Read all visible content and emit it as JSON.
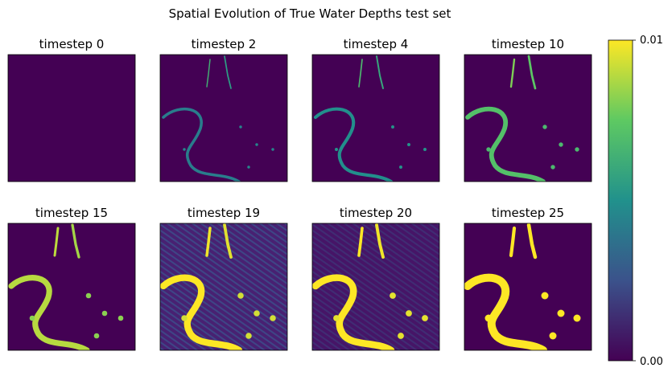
{
  "figure": {
    "title": "Spatial Evolution of True Water Depths test set"
  },
  "colorbar": {
    "max_label": "0.01",
    "min_label": "0.00",
    "colormap": "viridis",
    "stops": [
      "#440154",
      "#3b528b",
      "#21918c",
      "#5ec962",
      "#fde725"
    ]
  },
  "chart_data": {
    "type": "heatmap",
    "title": "Spatial Evolution of True Water Depths test set",
    "value_range": [
      0.0,
      0.01
    ],
    "panels": [
      {
        "label": "timestep 0",
        "timestep": 0
      },
      {
        "label": "timestep 2",
        "timestep": 2
      },
      {
        "label": "timestep 4",
        "timestep": 4
      },
      {
        "label": "timestep 10",
        "timestep": 10
      },
      {
        "label": "timestep 15",
        "timestep": 15
      },
      {
        "label": "timestep 19",
        "timestep": 19
      },
      {
        "label": "timestep 20",
        "timestep": 20
      },
      {
        "label": "timestep 25",
        "timestep": 25
      }
    ]
  }
}
